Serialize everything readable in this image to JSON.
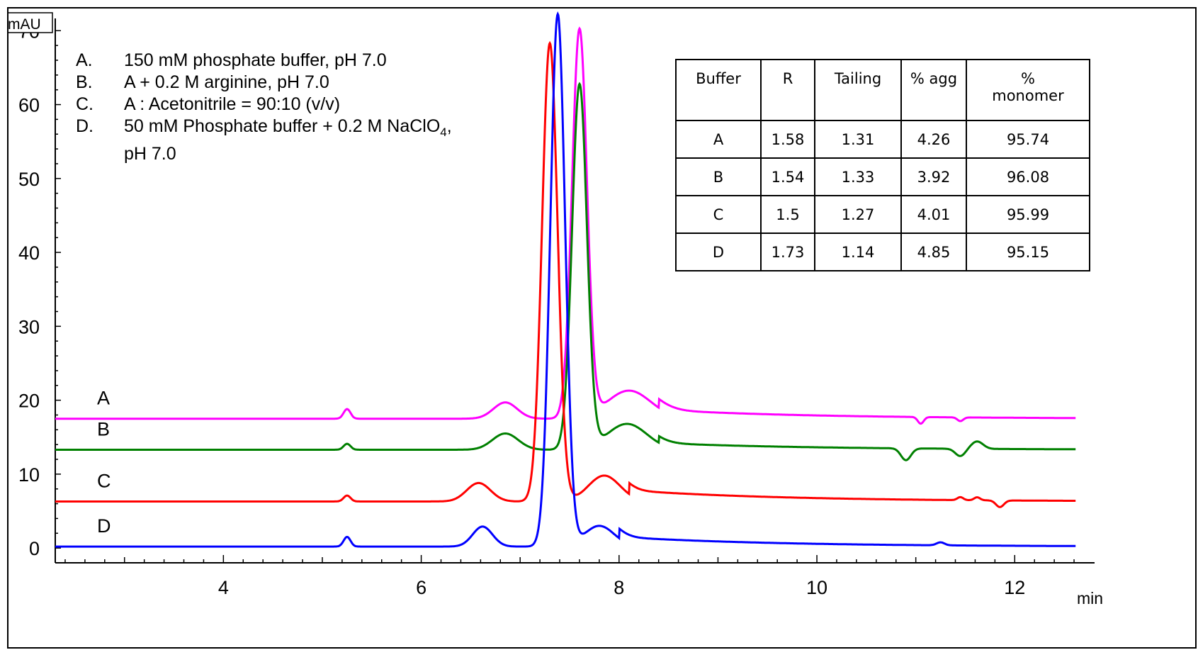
{
  "chart_data": {
    "type": "line",
    "title": "",
    "xlabel": "min",
    "ylabel": "mAU",
    "xlim": [
      2.3,
      12.75
    ],
    "ylim": [
      -2,
      73
    ],
    "x_ticks": [
      4,
      6,
      8,
      10,
      12
    ],
    "y_ticks": [
      0,
      10,
      20,
      30,
      40,
      50,
      60,
      70
    ],
    "grid": false,
    "series": [
      {
        "name": "A",
        "color": "#ff00ff",
        "baseline": 17.5,
        "features": [
          {
            "x": 5.25,
            "h": 1.3,
            "w": 0.035
          },
          {
            "x": 6.85,
            "h": 2.2,
            "w": 0.12
          },
          {
            "x": 7.6,
            "h": 52.5,
            "w": 0.075
          },
          {
            "x": 8.1,
            "h": 3.8,
            "w": 0.22
          },
          {
            "x": 11.05,
            "h": -0.9,
            "w": 0.03
          },
          {
            "x": 11.45,
            "h": -0.5,
            "w": 0.03
          }
        ],
        "tail": {
          "x": 8.4,
          "amp": 1.2
        }
      },
      {
        "name": "B",
        "color": "#008000",
        "baseline": 13.3,
        "features": [
          {
            "x": 5.25,
            "h": 0.8,
            "w": 0.035
          },
          {
            "x": 6.85,
            "h": 2.2,
            "w": 0.13
          },
          {
            "x": 7.6,
            "h": 49.3,
            "w": 0.075
          },
          {
            "x": 8.08,
            "h": 3.5,
            "w": 0.2
          },
          {
            "x": 10.9,
            "h": -1.6,
            "w": 0.05
          },
          {
            "x": 11.45,
            "h": -1.0,
            "w": 0.05
          },
          {
            "x": 11.62,
            "h": 1.0,
            "w": 0.06
          }
        ],
        "tail": {
          "x": 8.4,
          "amp": 0.9
        }
      },
      {
        "name": "C",
        "color": "#ff0000",
        "baseline": 6.3,
        "features": [
          {
            "x": 5.25,
            "h": 0.8,
            "w": 0.035
          },
          {
            "x": 6.58,
            "h": 2.5,
            "w": 0.12
          },
          {
            "x": 7.3,
            "h": 62.0,
            "w": 0.078
          },
          {
            "x": 7.85,
            "h": 3.5,
            "w": 0.16
          },
          {
            "x": 11.85,
            "h": -0.9,
            "w": 0.04
          },
          {
            "x": 11.45,
            "h": 0.4,
            "w": 0.03
          },
          {
            "x": 11.62,
            "h": 0.4,
            "w": 0.03
          }
        ],
        "tail": {
          "x": 8.1,
          "amp": 1.5
        }
      },
      {
        "name": "D",
        "color": "#0000ff",
        "baseline": 0.2,
        "features": [
          {
            "x": 5.25,
            "h": 1.3,
            "w": 0.035
          },
          {
            "x": 6.62,
            "h": 2.7,
            "w": 0.1
          },
          {
            "x": 7.38,
            "h": 72.0,
            "w": 0.075
          },
          {
            "x": 7.8,
            "h": 2.8,
            "w": 0.15
          },
          {
            "x": 11.25,
            "h": 0.4,
            "w": 0.04
          }
        ],
        "tail": {
          "x": 8.0,
          "amp": 1.3
        }
      }
    ]
  },
  "trace_labels": [
    "A",
    "B",
    "C",
    "D"
  ],
  "legend": [
    {
      "letter": "A.",
      "text": "150 mM phosphate buffer, pH 7.0"
    },
    {
      "letter": "B.",
      "text": "A + 0.2 M arginine, pH 7.0"
    },
    {
      "letter": "C.",
      "text": "A : Acetonitrile = 90:10 (v/v)"
    },
    {
      "letter": "D.",
      "text": "50 mM Phosphate buffer + 0.2 M NaClO",
      "subscript": "4",
      "suffix": ",",
      "line2": "pH 7.0"
    }
  ],
  "table": {
    "headers": [
      "Buffer",
      "R",
      "Tailing",
      "% agg",
      "%",
      "monomer"
    ],
    "rows": [
      [
        "A",
        "1.58",
        "1.31",
        "4.26",
        "95.74"
      ],
      [
        "B",
        "1.54",
        "1.33",
        "3.92",
        "96.08"
      ],
      [
        "C",
        "1.5",
        "1.27",
        "4.01",
        "95.99"
      ],
      [
        "D",
        "1.73",
        "1.14",
        "4.85",
        "95.15"
      ]
    ]
  }
}
